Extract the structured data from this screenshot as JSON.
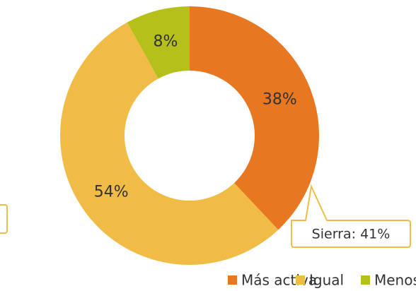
{
  "chart_data": {
    "type": "pie",
    "donut": true,
    "categories": [
      "Más activa",
      "Igual",
      "Menos activa"
    ],
    "values": [
      38,
      54,
      8
    ],
    "value_labels": [
      "38%",
      "54%",
      "8%"
    ],
    "colors": [
      "#e87722",
      "#f0bc45",
      "#b5c11a"
    ],
    "legend": "bottom",
    "annotation": "Sierra: 41%"
  }
}
